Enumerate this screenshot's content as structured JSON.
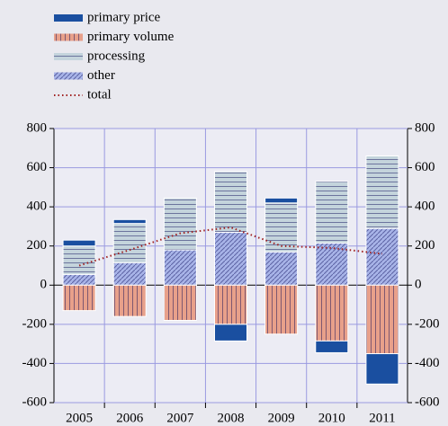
{
  "chart_data": {
    "type": "bar",
    "categories": [
      "2005",
      "2006",
      "2007",
      "2008",
      "2009",
      "2010",
      "2011"
    ],
    "series": [
      {
        "name": "primary price",
        "color": "#1a4fa0",
        "pattern": "solid",
        "values": [
          30,
          20,
          0,
          -85,
          25,
          -60,
          -155
        ]
      },
      {
        "name": "primary volume",
        "color": "#e8a08a",
        "pattern": "vertical",
        "values": [
          -130,
          -160,
          -180,
          -200,
          -250,
          -285,
          -350
        ]
      },
      {
        "name": "processing",
        "color": "#c4d4dc",
        "pattern": "horizontal",
        "values": [
          145,
          200,
          265,
          310,
          250,
          315,
          370
        ]
      },
      {
        "name": "other",
        "color": "#a8b4e8",
        "pattern": "diagonal",
        "values": [
          55,
          115,
          180,
          270,
          170,
          215,
          290
        ]
      },
      {
        "name": "total",
        "type": "line",
        "color": "#a02020",
        "values": [
          100,
          180,
          265,
          295,
          200,
          190,
          160
        ]
      }
    ],
    "ylim": [
      -600,
      800
    ],
    "yticks": [
      -600,
      -400,
      -200,
      0,
      200,
      400,
      600,
      800
    ],
    "y2lim": [
      -600,
      800
    ],
    "y2ticks": [
      -600,
      -400,
      -200,
      0,
      200,
      400,
      600,
      800
    ],
    "grid": true,
    "legend": "top-left"
  }
}
